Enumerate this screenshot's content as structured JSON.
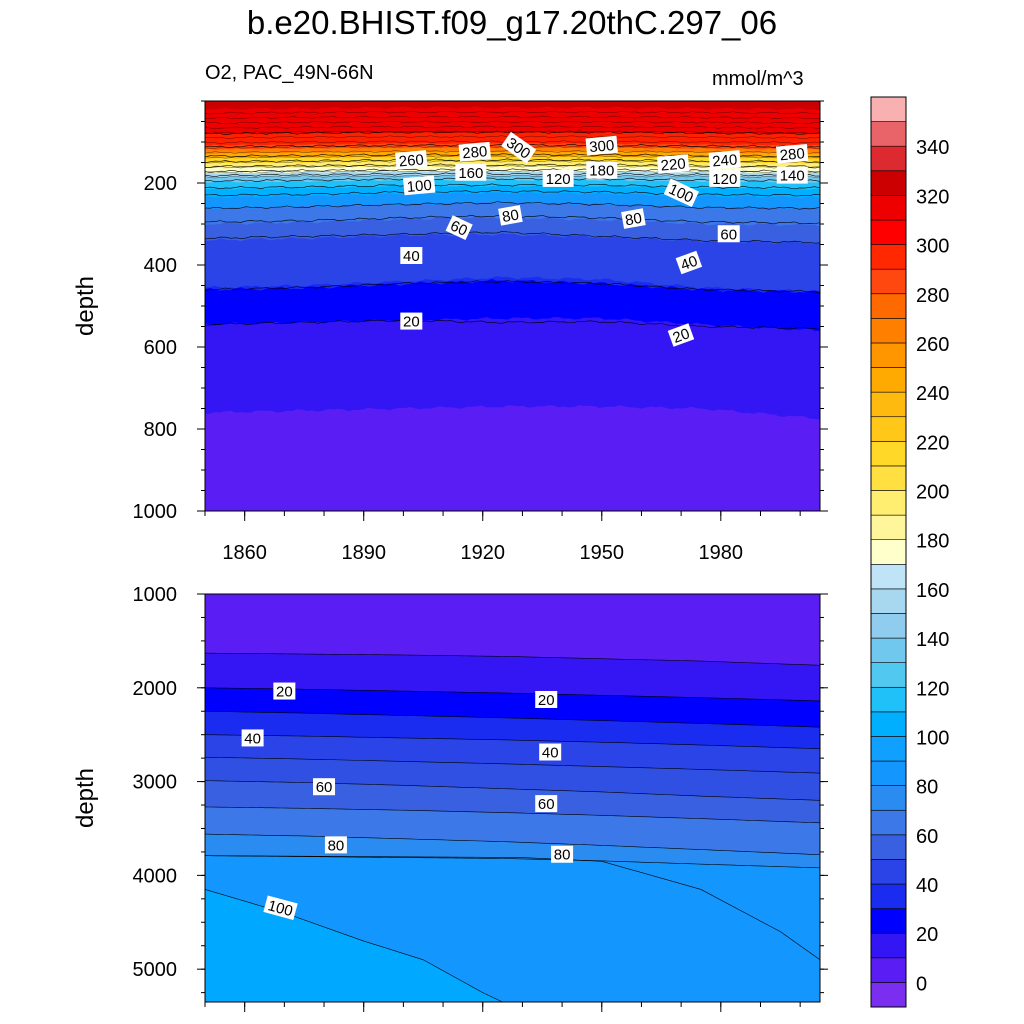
{
  "title": "b.e20.BHIST.f09_g17.20thC.297_06",
  "subtitle_left": "O2, PAC_49N-66N",
  "subtitle_right": "mmol/m^3",
  "chart_data": [
    {
      "type": "heatmap",
      "panel": "upper",
      "variable": "O2",
      "region": "PAC_49N-66N",
      "units": "mmol/m^3",
      "xlabel": "",
      "ylabel": "depth",
      "xlim": [
        1850,
        2005
      ],
      "ylim": [
        1000,
        0
      ],
      "x_ticks": [
        1860,
        1890,
        1920,
        1950,
        1980
      ],
      "y_ticks": [
        200,
        400,
        600,
        800,
        1000
      ],
      "contour_lines": [
        {
          "level": 20,
          "depth": [
            545,
            540,
            535,
            540,
            538,
            550,
            555
          ]
        },
        {
          "level": 40,
          "depth": [
            460,
            455,
            445,
            440,
            445,
            460,
            465
          ]
        },
        {
          "level": 60,
          "depth": [
            335,
            330,
            325,
            320,
            330,
            340,
            345
          ]
        },
        {
          "level": 80,
          "depth": [
            295,
            292,
            285,
            280,
            285,
            295,
            298
          ]
        },
        {
          "level": 100,
          "depth": [
            262,
            258,
            252,
            248,
            252,
            260,
            262
          ]
        },
        {
          "level": 120,
          "depth": [
            230,
            228,
            222,
            220,
            222,
            228,
            230
          ]
        },
        {
          "level": 140,
          "depth": [
            212,
            210,
            205,
            205,
            205,
            210,
            212
          ]
        },
        {
          "level": 160,
          "depth": [
            195,
            193,
            190,
            190,
            190,
            193,
            195
          ]
        },
        {
          "level": 180,
          "depth": [
            182,
            180,
            178,
            178,
            178,
            180,
            182
          ]
        },
        {
          "level": 200,
          "depth": [
            172,
            170,
            168,
            168,
            168,
            170,
            172
          ]
        },
        {
          "level": 220,
          "depth": [
            160,
            158,
            156,
            156,
            156,
            158,
            160
          ]
        },
        {
          "level": 240,
          "depth": [
            148,
            146,
            144,
            144,
            144,
            146,
            148
          ]
        },
        {
          "level": 260,
          "depth": [
            135,
            133,
            131,
            131,
            131,
            133,
            135
          ]
        },
        {
          "level": 280,
          "depth": [
            112,
            110,
            108,
            108,
            108,
            110,
            112
          ]
        },
        {
          "level": 300,
          "depth": [
            80,
            78,
            76,
            76,
            76,
            78,
            80
          ]
        }
      ],
      "contour_x": [
        1850,
        1875,
        1900,
        1925,
        1950,
        1975,
        2005
      ],
      "region_boundaries": [
        {
          "level": 0,
          "depth": [
            760,
            755,
            750,
            745,
            745,
            750,
            775
          ]
        },
        {
          "level": 20,
          "depth": [
            545,
            540,
            535,
            530,
            530,
            545,
            560
          ]
        },
        {
          "level": 40,
          "depth": [
            455,
            450,
            440,
            430,
            435,
            455,
            465
          ]
        }
      ],
      "labels": [
        {
          "text": "260",
          "x": 1902,
          "y": 145,
          "angle": -5
        },
        {
          "text": "280",
          "x": 1918,
          "y": 125,
          "angle": -5
        },
        {
          "text": "300",
          "x": 1929,
          "y": 115,
          "angle": 35
        },
        {
          "text": "300",
          "x": 1950,
          "y": 110,
          "angle": -5
        },
        {
          "text": "220",
          "x": 1968,
          "y": 155,
          "angle": -5
        },
        {
          "text": "240",
          "x": 1981,
          "y": 145,
          "angle": -5
        },
        {
          "text": "280",
          "x": 1998,
          "y": 130,
          "angle": -5
        },
        {
          "text": "160",
          "x": 1917,
          "y": 175,
          "angle": 0
        },
        {
          "text": "180",
          "x": 1950,
          "y": 170,
          "angle": 0
        },
        {
          "text": "120",
          "x": 1939,
          "y": 190,
          "angle": 0
        },
        {
          "text": "120",
          "x": 1981,
          "y": 190,
          "angle": 0
        },
        {
          "text": "140",
          "x": 1998,
          "y": 182,
          "angle": 0
        },
        {
          "text": "100",
          "x": 1904,
          "y": 207,
          "angle": -5
        },
        {
          "text": "100",
          "x": 1970,
          "y": 225,
          "angle": 25
        },
        {
          "text": "80",
          "x": 1927,
          "y": 280,
          "angle": -10
        },
        {
          "text": "80",
          "x": 1958,
          "y": 288,
          "angle": -10
        },
        {
          "text": "60",
          "x": 1914,
          "y": 310,
          "angle": 25
        },
        {
          "text": "60",
          "x": 1982,
          "y": 325,
          "angle": 0
        },
        {
          "text": "40",
          "x": 1902,
          "y": 378,
          "angle": 0
        },
        {
          "text": "40",
          "x": 1972,
          "y": 395,
          "angle": -20
        },
        {
          "text": "20",
          "x": 1902,
          "y": 538,
          "angle": 0
        },
        {
          "text": "20",
          "x": 1970,
          "y": 572,
          "angle": -20
        }
      ]
    },
    {
      "type": "heatmap",
      "panel": "lower",
      "variable": "O2",
      "region": "PAC_49N-66N",
      "units": "mmol/m^3",
      "xlabel": "",
      "ylabel": "depth",
      "xlim": [
        1850,
        2005
      ],
      "ylim": [
        5350,
        1000
      ],
      "y_ticks": [
        1000,
        2000,
        3000,
        4000,
        5000
      ],
      "contour_x": [
        1850,
        1875,
        1900,
        1925,
        1950,
        1975,
        2005
      ],
      "contour_lines": [
        {
          "level": 0,
          "depth": [
            1630,
            1640,
            1650,
            1665,
            1690,
            1715,
            1760
          ]
        },
        {
          "level": 20,
          "depth": [
            2000,
            2015,
            2035,
            2055,
            2080,
            2105,
            2140
          ]
        },
        {
          "level": 40,
          "depth": [
            2250,
            2270,
            2295,
            2320,
            2350,
            2380,
            2420
          ]
        },
        {
          "level": 50,
          "depth": [
            2500,
            2515,
            2535,
            2555,
            2580,
            2610,
            2650
          ]
        },
        {
          "level": 60,
          "depth": [
            2740,
            2760,
            2785,
            2810,
            2840,
            2870,
            2910
          ]
        },
        {
          "level": 70,
          "depth": [
            2990,
            3010,
            3040,
            3075,
            3110,
            3155,
            3200
          ]
        },
        {
          "level": 80,
          "depth": [
            3270,
            3285,
            3305,
            3330,
            3360,
            3395,
            3440
          ]
        },
        {
          "level": 90,
          "depth": [
            3560,
            3580,
            3610,
            3640,
            3680,
            3725,
            3780
          ]
        },
        {
          "level": 100,
          "depth": [
            3790,
            3800,
            3810,
            3820,
            3845,
            3880,
            3920
          ]
        }
      ],
      "boundary_100": [
        [
          1850,
          4150
        ],
        [
          1870,
          4400
        ],
        [
          1890,
          4700
        ],
        [
          1905,
          4900
        ],
        [
          1920,
          5250
        ],
        [
          1925,
          5350
        ]
      ],
      "boundary_90": [
        [
          1850,
          3790
        ],
        [
          1930,
          3810
        ],
        [
          1950,
          3850
        ],
        [
          1975,
          4150
        ],
        [
          1995,
          4600
        ],
        [
          2005,
          4900
        ]
      ],
      "labels": [
        {
          "text": "20",
          "x": 1870,
          "y": 2040,
          "angle": 0
        },
        {
          "text": "20",
          "x": 1936,
          "y": 2130,
          "angle": 0
        },
        {
          "text": "40",
          "x": 1862,
          "y": 2540,
          "angle": 0
        },
        {
          "text": "40",
          "x": 1937,
          "y": 2690,
          "angle": 0
        },
        {
          "text": "60",
          "x": 1880,
          "y": 3060,
          "angle": 0
        },
        {
          "text": "60",
          "x": 1936,
          "y": 3240,
          "angle": 0
        },
        {
          "text": "80",
          "x": 1883,
          "y": 3680,
          "angle": 0
        },
        {
          "text": "80",
          "x": 1940,
          "y": 3780,
          "angle": 0
        },
        {
          "text": "100",
          "x": 1869,
          "y": 4350,
          "angle": 15
        }
      ]
    },
    {
      "type": "colorbar",
      "levels": [
        0,
        20,
        40,
        60,
        80,
        100,
        120,
        140,
        160,
        180,
        200,
        220,
        240,
        260,
        280,
        300,
        320,
        340
      ],
      "colors": [
        "#7a2ef0",
        "#5a1ef5",
        "#3416f5",
        "#0000ff",
        "#1a2cf0",
        "#2a44e8",
        "#3860e0",
        "#3c78e8",
        "#2a8cf0",
        "#1496ff",
        "#10a0ff",
        "#00b0ff",
        "#20c0f8",
        "#50c8f0",
        "#70c8ee",
        "#90ccee",
        "#a8d8f0",
        "#bfe4f8",
        "#ffffcc",
        "#fff59a",
        "#ffee70",
        "#ffe040",
        "#ffd828",
        "#ffc818",
        "#ffba10",
        "#ffaa00",
        "#ff9600",
        "#ff8000",
        "#ff6a00",
        "#ff4810",
        "#ff2800",
        "#ff0000",
        "#ee0000",
        "#cc0000",
        "#dd2a30",
        "#e86468",
        "#f8b0b0"
      ]
    }
  ]
}
